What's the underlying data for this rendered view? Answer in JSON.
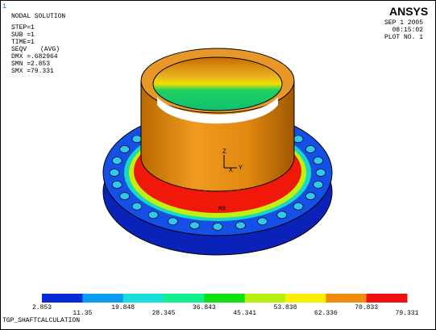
{
  "header": {
    "window_number": "1",
    "title": "NODAL SOLUTION",
    "lines": [
      "STEP=1",
      "SUB =1",
      "TIME=1"
    ],
    "quantity": "SEQV",
    "averaging": "(AVG)",
    "stats": [
      "DMX =.682964",
      "SMN =2.853",
      "SMX =79.331"
    ]
  },
  "logo": "ANSYS",
  "stamp": [
    "SEP  1 2005",
    "08:15:02",
    "PLOT NO.   1"
  ],
  "model": {
    "max_marker": "MX",
    "triad": [
      "Z",
      "Y",
      "X"
    ]
  },
  "legend": {
    "labels": [
      "2.853",
      "11.35",
      "19.848",
      "28.345",
      "36.843",
      "45.341",
      "53.838",
      "62.336",
      "70.833",
      "79.331"
    ],
    "colors": [
      "#0a2ad8",
      "#0c9cf0",
      "#18e0d8",
      "#10f090",
      "#10e010",
      "#b8f010",
      "#f8f000",
      "#f08c10",
      "#f01010"
    ]
  },
  "footer": "TGP_SHAFTCALCULATION"
}
